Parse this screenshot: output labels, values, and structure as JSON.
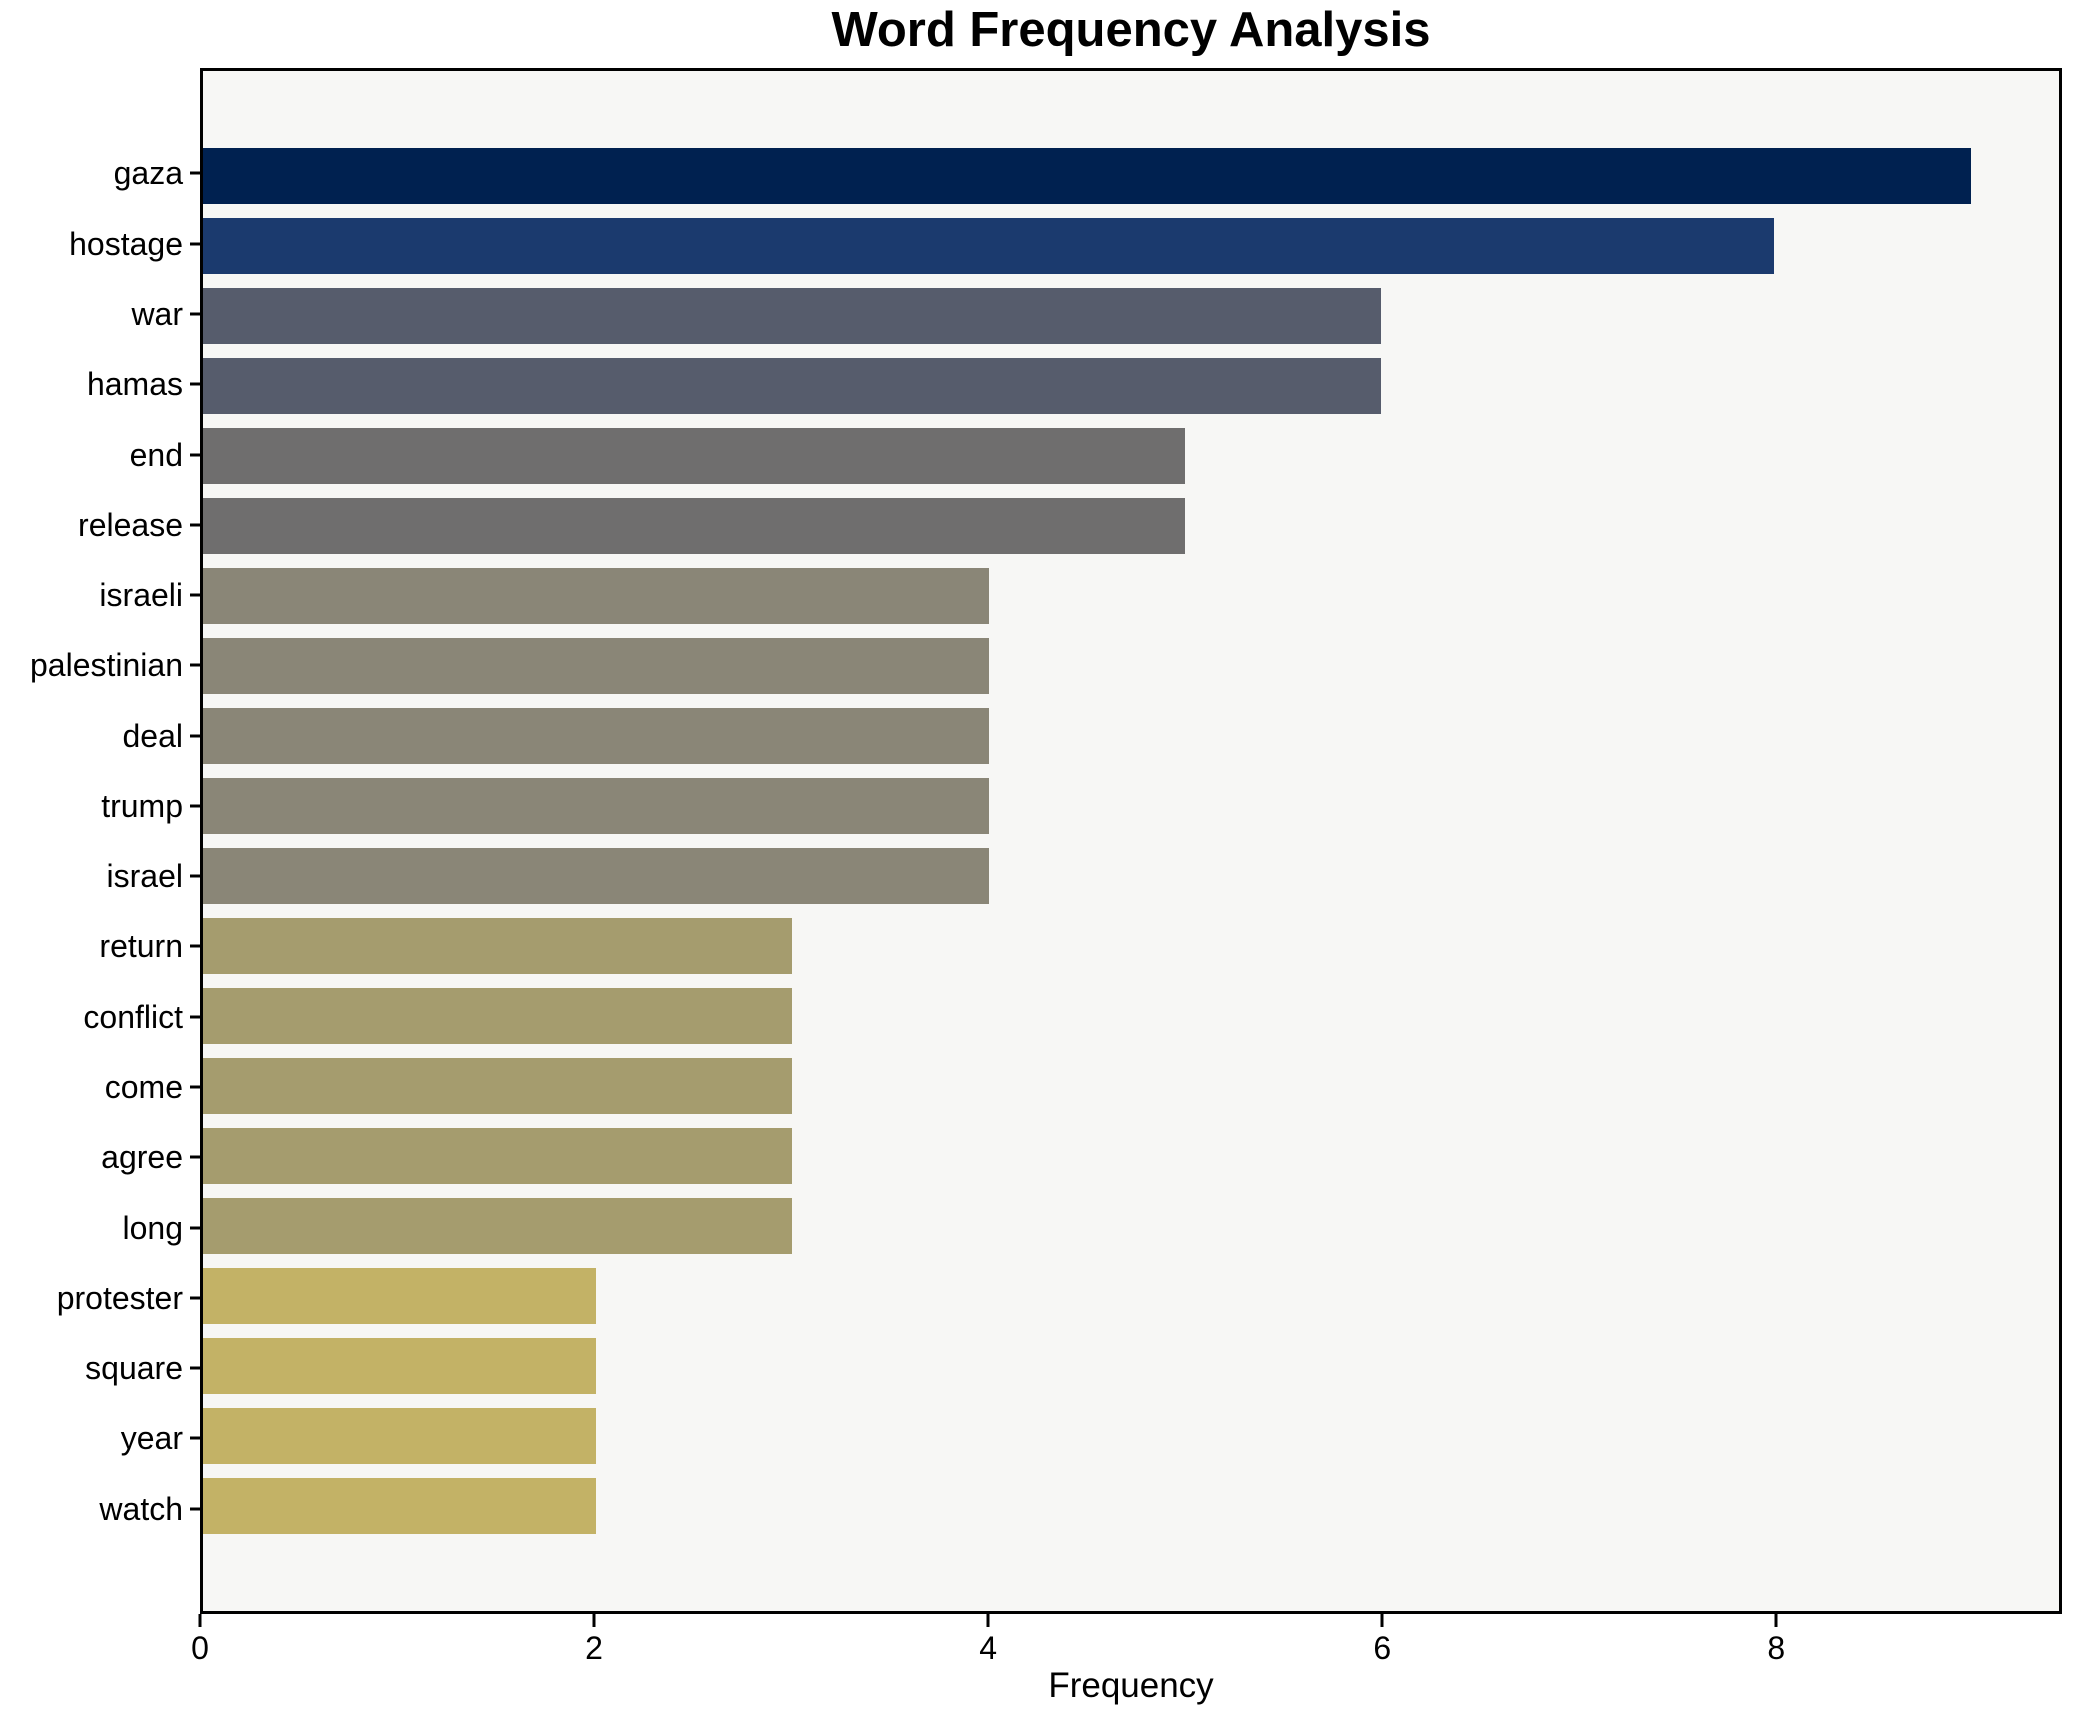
{
  "chart_data": {
    "type": "bar",
    "orientation": "horizontal",
    "title": "Word Frequency Analysis",
    "xlabel": "Frequency",
    "ylabel": "",
    "categories": [
      "gaza",
      "hostage",
      "war",
      "hamas",
      "end",
      "release",
      "israeli",
      "palestinian",
      "deal",
      "trump",
      "israel",
      "return",
      "conflict",
      "come",
      "agree",
      "long",
      "protester",
      "square",
      "year",
      "watch"
    ],
    "values": [
      9,
      8,
      6,
      6,
      5,
      5,
      4,
      4,
      4,
      4,
      4,
      3,
      3,
      3,
      3,
      3,
      2,
      2,
      2,
      2
    ],
    "colors": [
      "#002150",
      "#1b3a6e",
      "#565c6c",
      "#565c6c",
      "#6f6e6e",
      "#6f6e6e",
      "#8a8677",
      "#8a8677",
      "#8a8677",
      "#8a8677",
      "#8a8677",
      "#a59c6e",
      "#a59c6e",
      "#a59c6e",
      "#a59c6e",
      "#a59c6e",
      "#c3b266",
      "#c3b266",
      "#c3b266",
      "#c3b266"
    ],
    "xlim": [
      0,
      9.45
    ],
    "xticks": [
      0,
      2,
      4,
      6,
      8
    ],
    "grid": false,
    "legend_position": "none",
    "bar_thickness": 0.8,
    "plot_background": "#f7f7f5",
    "figure_background": "#ffffff",
    "text_color": "#000000",
    "spine_color": "#000000"
  }
}
